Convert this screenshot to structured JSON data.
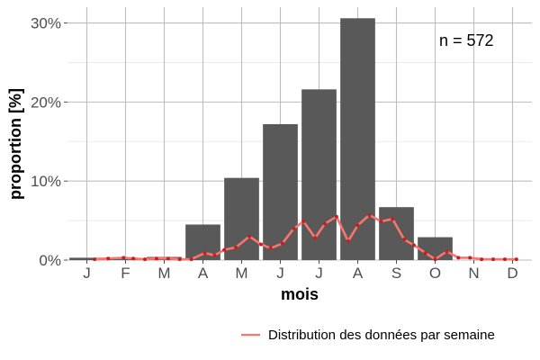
{
  "chart_data": {
    "type": "bar",
    "xlabel": "mois",
    "ylabel": "proportion [%]",
    "categories": [
      "J",
      "F",
      "M",
      "A",
      "M",
      "J",
      "J",
      "A",
      "S",
      "O",
      "N",
      "D"
    ],
    "values": [
      0.3,
      0.1,
      0.4,
      4.5,
      10.4,
      17.2,
      21.6,
      30.6,
      6.7,
      2.9,
      0.0,
      0.0
    ],
    "ylim": [
      0,
      32
    ],
    "y_ticks": [
      0,
      10,
      20,
      30
    ],
    "y_tick_labels": [
      "0%",
      "10%",
      "20%",
      "30%"
    ],
    "annotation": "n = 572",
    "grid": true,
    "bar_color": "#595959",
    "line_series": {
      "name": "Distribution des données par semaine",
      "color": "#f8766d",
      "point_color": "#c81e1e",
      "x": [
        1.2,
        1.55,
        1.95,
        2.2,
        2.5,
        2.8,
        3.1,
        3.4,
        3.7,
        4.05,
        4.3,
        4.55,
        4.85,
        5.2,
        5.5,
        5.75,
        6.05,
        6.35,
        6.6,
        6.9,
        7.15,
        7.45,
        7.75,
        8.0,
        8.3,
        8.6,
        8.9,
        9.2,
        9.45,
        9.75,
        10.0,
        10.3,
        10.6,
        10.9,
        11.2,
        11.5,
        11.8,
        12.1
      ],
      "y": [
        0.1,
        0.2,
        0.3,
        0.2,
        0.1,
        0.2,
        0.2,
        0.1,
        0.1,
        0.9,
        0.6,
        1.3,
        1.6,
        3.0,
        2.0,
        1.5,
        2.1,
        4.0,
        4.9,
        2.8,
        4.6,
        5.5,
        2.4,
        4.4,
        5.7,
        4.9,
        5.2,
        2.6,
        1.9,
        0.9,
        0.1,
        1.1,
        0.3,
        0.3,
        0.1,
        0.1,
        0.1,
        0.1
      ]
    }
  }
}
